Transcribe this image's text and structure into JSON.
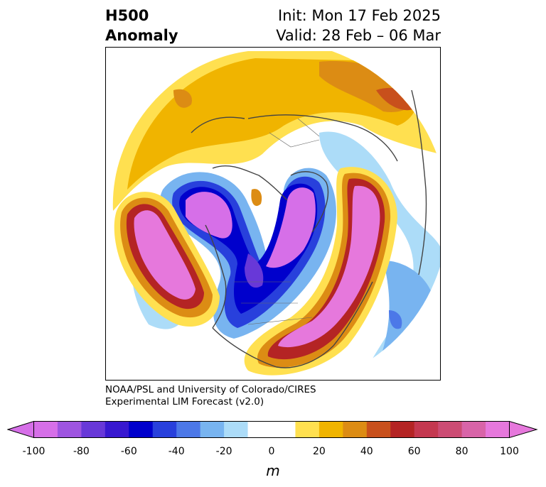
{
  "title": {
    "left_line1": "H500",
    "left_line2": "Anomaly",
    "right_line1": "Init: Mon 17 Feb 2025",
    "right_line2": "Valid: 28 Feb – 06 Mar"
  },
  "credit": {
    "line1": "NOAA/PSL and University of Colorado/CIRES",
    "line2": "Experimental LIM Forecast (v2.0)"
  },
  "colorbar": {
    "unit": "m",
    "ticks": [
      "-100",
      "-80",
      "-60",
      "-40",
      "-20",
      "0",
      "20",
      "40",
      "60",
      "80",
      "100"
    ],
    "colors": [
      "#d66fe8",
      "#9e54e0",
      "#6838d8",
      "#3818d0",
      "#0000cc",
      "#2840dc",
      "#4c78e8",
      "#78b4f0",
      "#acdcf8",
      "#ffffff",
      "#ffffff",
      "#ffe050",
      "#f0b400",
      "#dc8c14",
      "#c8501c",
      "#b42424",
      "#c43850",
      "#cc4c74",
      "#d864a8",
      "#e678dc"
    ]
  }
}
